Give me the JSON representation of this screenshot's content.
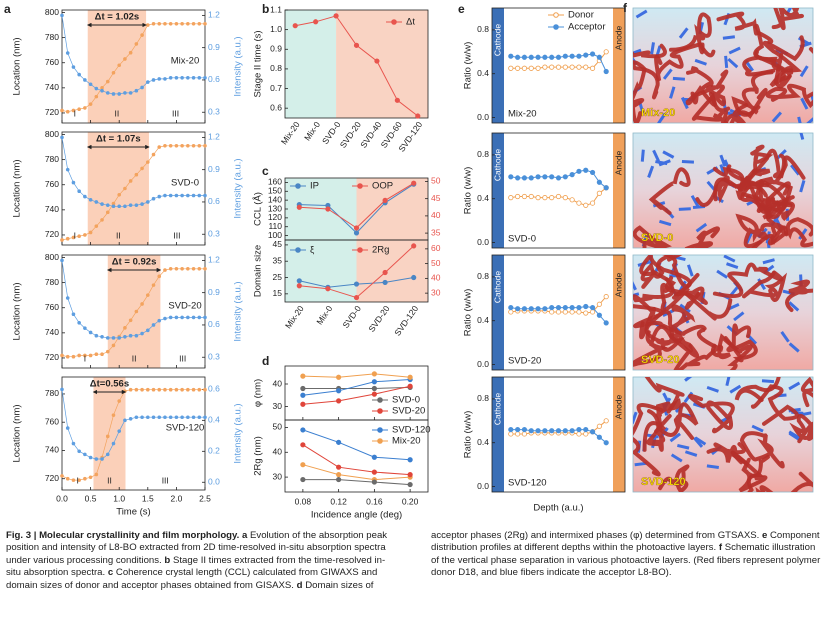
{
  "chart_data": [
    {
      "type": "scatter",
      "panel_label": "a",
      "x": [
        0,
        0.1,
        0.2,
        0.3,
        0.4,
        0.5,
        0.6,
        0.7,
        0.8,
        0.9,
        1.0,
        1.1,
        1.2,
        1.3,
        1.4,
        1.5,
        1.6,
        1.7,
        1.8,
        1.9,
        2.0,
        2.1,
        2.2,
        2.3,
        2.4,
        2.5
      ],
      "xlim": [
        0,
        2.5
      ],
      "xticks": [
        {
          "value": 0,
          "label": "0.0"
        },
        0.5,
        {
          "value": 1,
          "label": "1.0"
        },
        1.5,
        {
          "value": 2,
          "label": "2.0"
        },
        2.5
      ],
      "xlabel": "Time (s)",
      "ylabel": "Location (nm)",
      "y2label": "Intensity (a.u.)",
      "phases": [
        "I",
        "II",
        "III"
      ],
      "panels": [
        {
          "label": "Mix-20",
          "annotation": "Δt = 1.02s",
          "span": [
            0.45,
            1.47
          ],
          "ylim": [
            712,
            802
          ],
          "yticks": [
            720,
            740,
            760,
            780,
            800
          ],
          "y2lim": [
            0.2,
            1.25
          ],
          "y2ticks": [
            0.3,
            0.6,
            0.9,
            1.2
          ],
          "series": [
            {
              "color": "#f3a35e",
              "values": [
                722,
                721,
                722,
                723,
                724,
                727,
                733,
                740,
                745,
                752,
                758,
                763,
                768,
                775,
                782,
                790,
                791,
                791,
                791,
                791,
                791,
                791,
                791,
                791,
                791,
                791
              ]
            },
            {
              "color": "#5e9ee0",
              "axis": "y2",
              "values": [
                1.2,
                0.85,
                0.72,
                0.65,
                0.6,
                0.56,
                0.52,
                0.5,
                0.48,
                0.47,
                0.47,
                0.48,
                0.48,
                0.5,
                0.53,
                0.58,
                0.6,
                0.61,
                0.61,
                0.62,
                0.62,
                0.62,
                0.62,
                0.62,
                0.62,
                0.62
              ]
            }
          ]
        },
        {
          "label": "SVD-0",
          "annotation": "Δt = 1.07s",
          "span": [
            0.45,
            1.52
          ],
          "ylim": [
            712,
            802
          ],
          "yticks": [
            720,
            740,
            760,
            780,
            800
          ],
          "y2lim": [
            0.2,
            1.25
          ],
          "y2ticks": [
            0.3,
            0.6,
            0.9,
            1.2
          ],
          "series": [
            {
              "color": "#f3a35e",
              "values": [
                716,
                717,
                718,
                719,
                720,
                722,
                727,
                732,
                738,
                745,
                752,
                757,
                763,
                768,
                773,
                778,
                784,
                790,
                791,
                791,
                791,
                791,
                791,
                791,
                791,
                791
              ]
            },
            {
              "color": "#5e9ee0",
              "axis": "y2",
              "values": [
                1.2,
                0.9,
                0.78,
                0.7,
                0.65,
                0.62,
                0.6,
                0.58,
                0.57,
                0.56,
                0.56,
                0.56,
                0.57,
                0.57,
                0.58,
                0.6,
                0.63,
                0.65,
                0.66,
                0.66,
                0.66,
                0.66,
                0.66,
                0.66,
                0.66,
                0.66
              ]
            }
          ]
        },
        {
          "label": "SVD-20",
          "annotation": "Δt = 0.92s",
          "span": [
            0.8,
            1.72
          ],
          "ylim": [
            712,
            802
          ],
          "yticks": [
            720,
            740,
            760,
            780,
            800
          ],
          "y2lim": [
            0.2,
            1.25
          ],
          "y2ticks": [
            0.3,
            0.6,
            0.9,
            1.2
          ],
          "series": [
            {
              "color": "#f3a35e",
              "values": [
                722,
                721,
                721,
                722,
                722,
                722,
                723,
                723,
                725,
                730,
                737,
                744,
                750,
                757,
                763,
                770,
                778,
                785,
                790,
                791,
                791,
                791,
                791,
                791,
                791,
                791
              ]
            },
            {
              "color": "#5e9ee0",
              "axis": "y2",
              "values": [
                1.2,
                0.85,
                0.7,
                0.62,
                0.57,
                0.53,
                0.5,
                0.49,
                0.48,
                0.48,
                0.48,
                0.49,
                0.5,
                0.5,
                0.52,
                0.55,
                0.6,
                0.64,
                0.66,
                0.67,
                0.67,
                0.67,
                0.67,
                0.67,
                0.67,
                0.67
              ]
            }
          ]
        },
        {
          "label": "SVD-120",
          "annotation": "Δt=0.56s",
          "span": [
            0.55,
            1.11
          ],
          "ylim": [
            712,
            792
          ],
          "yticks": [
            720,
            740,
            760,
            780
          ],
          "y2lim": [
            -0.05,
            0.68
          ],
          "y2ticks": [
            {
              "value": 0,
              "label": "0.0"
            },
            0.2,
            0.4,
            0.6
          ],
          "series": [
            {
              "color": "#f3a35e",
              "values": [
                722,
                720,
                719,
                719,
                720,
                721,
                723,
                735,
                750,
                765,
                775,
                782,
                783,
                783,
                783,
                783,
                783,
                783,
                783,
                783,
                783,
                783,
                783,
                783,
                783,
                783
              ]
            },
            {
              "color": "#5e9ee0",
              "axis": "y2",
              "values": [
                0.6,
                0.35,
                0.25,
                0.2,
                0.18,
                0.16,
                0.15,
                0.15,
                0.18,
                0.25,
                0.33,
                0.4,
                0.41,
                0.42,
                0.42,
                0.42,
                0.42,
                0.42,
                0.42,
                0.42,
                0.42,
                0.42,
                0.42,
                0.42,
                0.42,
                0.42
              ]
            }
          ]
        }
      ]
    },
    {
      "type": "line",
      "panel_label": "b",
      "categories": [
        "Mix-20",
        "Mix-0",
        "SVD-0",
        "SVD-20",
        "SVD-40",
        "SVD-60",
        "SVD-120"
      ],
      "split_at": "SVD-0",
      "region_colors": [
        "#d4efe9",
        "#f9d3c3"
      ],
      "ylabel": "Stage II time (s)",
      "ylim": [
        0.55,
        1.1
      ],
      "yticks": [
        0.6,
        0.7,
        0.8,
        0.9,
        {
          "value": 1,
          "label": "1.0"
        },
        1.1
      ],
      "series": [
        {
          "name": "Δt",
          "color": "#e8554e",
          "values": [
            1.02,
            1.04,
            1.07,
            0.92,
            0.84,
            0.64,
            0.56
          ]
        }
      ]
    },
    {
      "type": "line",
      "panel_label": "c",
      "categories": [
        "Mix-20",
        "Mix-0",
        "SVD-0",
        "SVD-20",
        "SVD-120"
      ],
      "split_at": "SVD-0",
      "region_colors": [
        "#d4efe9",
        "#f9d3c3"
      ],
      "panels": [
        {
          "ylabel": "CCL (Å)",
          "ylim": [
            95,
            165
          ],
          "yticks": [
            100,
            110,
            120,
            130,
            140,
            150,
            160
          ],
          "y2lim": [
            33,
            51
          ],
          "y2ticks": [
            35,
            40,
            45,
            50
          ],
          "series": [
            {
              "name": "IP",
              "color": "#4a86c5",
              "values": [
                135,
                134,
                103,
                137,
                158
              ]
            },
            {
              "name": "OOP",
              "color": "#e8554e",
              "axis": "y2",
              "values": [
                42.5,
                42,
                36.5,
                44.5,
                49.5
              ]
            }
          ]
        },
        {
          "ylabel": "Domain size",
          "ylim": [
            10,
            48
          ],
          "yticks": [
            15,
            25,
            35,
            45
          ],
          "y2lim": [
            24,
            66
          ],
          "y2ticks": [
            30,
            40,
            50,
            60
          ],
          "series": [
            {
              "name": "ξ",
              "color": "#4a86c5",
              "values": [
                23,
                19,
                21,
                22,
                25
              ]
            },
            {
              "name": "2Rg",
              "color": "#e8554e",
              "axis": "y2",
              "values": [
                35,
                33,
                27,
                44,
                62
              ]
            }
          ]
        }
      ]
    },
    {
      "type": "line",
      "panel_label": "d",
      "x": [
        0.08,
        0.12,
        0.16,
        0.2
      ],
      "xlim": [
        0.06,
        0.22
      ],
      "xticks": [
        0.08,
        0.12,
        0.16,
        {
          "value": 0.2,
          "label": "0.20"
        }
      ],
      "xlabel": "Incidence angle (deg)",
      "panels": [
        {
          "ylabel": "φ (nm)",
          "ylim": [
            24,
            48
          ],
          "yticks": [
            30,
            40
          ],
          "series": [
            {
              "name": "SVD-0",
              "color": "#6b6b6b",
              "values": [
                38,
                38,
                38,
                38.5
              ]
            },
            {
              "name": "SVD-20",
              "color": "#e0453a",
              "values": [
                31,
                32.5,
                35.5,
                39
              ]
            },
            {
              "color": "#3b7fd0",
              "values": [
                35,
                37,
                41,
                42
              ]
            },
            {
              "color": "#f0a050",
              "values": [
                43.5,
                43,
                44.5,
                43
              ]
            }
          ]
        },
        {
          "ylabel": "2Rg (nm)",
          "ylim": [
            24,
            53
          ],
          "yticks": [
            30,
            40,
            50
          ],
          "series": [
            {
              "name": "SVD-120",
              "color": "#3b7fd0",
              "values": [
                49,
                44,
                38,
                37
              ]
            },
            {
              "name": "Mix-20",
              "color": "#f0a050",
              "values": [
                35,
                31,
                29,
                30
              ]
            },
            {
              "color": "#e0453a",
              "values": [
                43,
                34,
                32,
                31
              ]
            },
            {
              "color": "#6b6b6b",
              "values": [
                29,
                29,
                28,
                27
              ]
            }
          ]
        }
      ]
    },
    {
      "type": "line",
      "panel_label": "e",
      "x": [
        1,
        2,
        3,
        4,
        5,
        6,
        7,
        8,
        9,
        10,
        11,
        12,
        13,
        14,
        15
      ],
      "xlim": [
        0,
        16
      ],
      "ylim": [
        -0.05,
        1.0
      ],
      "yticks": [
        {
          "value": 0,
          "label": "0.0"
        },
        0.4,
        0.8
      ],
      "ylabel": "Ratio (w/w)",
      "xlabel": "Depth (a.u.)",
      "cathode": "Cathode",
      "anode": "Anode",
      "panels": [
        {
          "label": "Mix-20",
          "series": [
            {
              "name": "Donor",
              "color": "#f0a050",
              "values": [
                0.45,
                0.45,
                0.45,
                0.45,
                0.45,
                0.46,
                0.46,
                0.46,
                0.46,
                0.46,
                0.46,
                0.46,
                0.45,
                0.52,
                0.6
              ]
            },
            {
              "name": "Acceptor",
              "color": "#4a90d9",
              "values": [
                0.56,
                0.55,
                0.55,
                0.55,
                0.55,
                0.55,
                0.55,
                0.55,
                0.56,
                0.56,
                0.56,
                0.57,
                0.58,
                0.55,
                0.42
              ]
            }
          ]
        },
        {
          "label": "SVD-0",
          "series": [
            {
              "color": "#f0a050",
              "values": [
                0.41,
                0.42,
                0.42,
                0.42,
                0.41,
                0.41,
                0.41,
                0.42,
                0.41,
                0.39,
                0.36,
                0.34,
                0.36,
                0.45,
                0.5
              ]
            },
            {
              "color": "#4a90d9",
              "values": [
                0.6,
                0.59,
                0.59,
                0.59,
                0.6,
                0.6,
                0.6,
                0.59,
                0.6,
                0.62,
                0.65,
                0.66,
                0.64,
                0.55,
                0.5
              ]
            }
          ]
        },
        {
          "label": "SVD-20",
          "series": [
            {
              "color": "#f0a050",
              "values": [
                0.48,
                0.49,
                0.49,
                0.49,
                0.49,
                0.49,
                0.48,
                0.48,
                0.48,
                0.48,
                0.48,
                0.47,
                0.48,
                0.55,
                0.62
              ]
            },
            {
              "color": "#4a90d9",
              "values": [
                0.52,
                0.51,
                0.51,
                0.51,
                0.51,
                0.51,
                0.52,
                0.52,
                0.52,
                0.52,
                0.52,
                0.53,
                0.52,
                0.45,
                0.38
              ]
            }
          ]
        },
        {
          "label": "SVD-120",
          "series": [
            {
              "color": "#f0a050",
              "values": [
                0.48,
                0.48,
                0.48,
                0.49,
                0.49,
                0.49,
                0.49,
                0.49,
                0.49,
                0.49,
                0.48,
                0.48,
                0.5,
                0.55,
                0.6
              ]
            },
            {
              "color": "#4a90d9",
              "values": [
                0.52,
                0.52,
                0.52,
                0.51,
                0.51,
                0.51,
                0.51,
                0.51,
                0.51,
                0.51,
                0.52,
                0.52,
                0.5,
                0.45,
                0.4
              ]
            }
          ]
        }
      ]
    }
  ],
  "schematic": {
    "panel_label": "f",
    "labels": [
      "Mix-20",
      "SVD-0",
      "SVD-20",
      "SVD-120"
    ]
  },
  "caption": {
    "title": "Fig. 3 | Molecular crystallinity and film morphology.",
    "parts": [
      {
        "label": "a",
        "text": "Evolution of the absorption peak position and intensity of L8-BO extracted from 2D time-resolved in-situ absorption spectra under various processing conditions."
      },
      {
        "label": "b",
        "text": "Stage II times extracted from the time-resolved in-situ absorption spectra."
      },
      {
        "label": "c",
        "text": "Coherence crystal length (CCL) calculated from GIWAXS and domain sizes of donor and acceptor phases obtained from GISAXS."
      },
      {
        "label": "d",
        "text": "Domain sizes of acceptor phases (2Rg) and intermixed phases (φ) determined from GTSAXS."
      },
      {
        "label": "e",
        "text": "Component distribution profiles at different depths within the photoactive layers."
      },
      {
        "label": "f",
        "text": "Schematic illustration of the vertical phase separation in various photoactive layers. (Red fibers represent polymer donor D18, and blue fibers indicate the acceptor L8-BO)."
      }
    ]
  }
}
